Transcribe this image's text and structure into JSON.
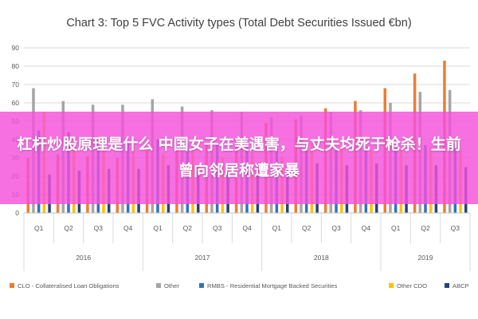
{
  "chart_data": {
    "type": "bar",
    "title": "Chart 3: Top 5 FVC Activity types (Total Debt Securities Issued €bn)",
    "ylim": [
      0,
      90
    ],
    "yticks": [
      0,
      10,
      20,
      30,
      40,
      50,
      60,
      70,
      80,
      90
    ],
    "grid": true,
    "legend_position": "bottom",
    "categories": [
      "Q1",
      "Q2",
      "Q3",
      "Q4",
      "Q1",
      "Q2",
      "Q3",
      "Q4",
      "Q1",
      "Q2",
      "Q3",
      "Q4",
      "Q1",
      "Q2",
      "Q3"
    ],
    "groups": [
      {
        "label": "2016",
        "count": 4
      },
      {
        "label": "2017",
        "count": 4
      },
      {
        "label": "2018",
        "count": 4
      },
      {
        "label": "2019",
        "count": 3
      }
    ],
    "series": [
      {
        "name": "CLO - Collateralised Loan Obligations",
        "color": "#ED7D31",
        "values": [
          30,
          32,
          31,
          30,
          34,
          35,
          37,
          40,
          49,
          51,
          57,
          61,
          68,
          76,
          83
        ]
      },
      {
        "name": "Other",
        "color": "#A5A5A5",
        "values": [
          68,
          61,
          59,
          59,
          62,
          58,
          56,
          55,
          52,
          53,
          55,
          56,
          60,
          66,
          67
        ]
      },
      {
        "name": "RMBS - Residential Mortgage Backed Securities",
        "color": "#2E75B6",
        "values": [
          45,
          44,
          40,
          38,
          40,
          38,
          37,
          36,
          35,
          34,
          34,
          36,
          36,
          37,
          38
        ]
      },
      {
        "name": "Other CDO",
        "color": "#FFC000",
        "values": [
          55,
          40,
          34,
          38,
          32,
          36,
          30,
          33,
          31,
          38,
          36,
          34,
          35,
          36,
          34
        ]
      },
      {
        "name": "ABCP",
        "color": "#264478",
        "values": [
          21,
          23,
          24,
          24,
          26,
          25,
          25,
          27,
          26,
          27,
          26,
          27,
          26,
          26,
          25
        ]
      }
    ]
  },
  "overlay": {
    "banner_text": "杠杆炒股原理是什么 中国女子在美遇害，与丈夫均死于枪杀！生前曾向邻居称遭家暴"
  }
}
